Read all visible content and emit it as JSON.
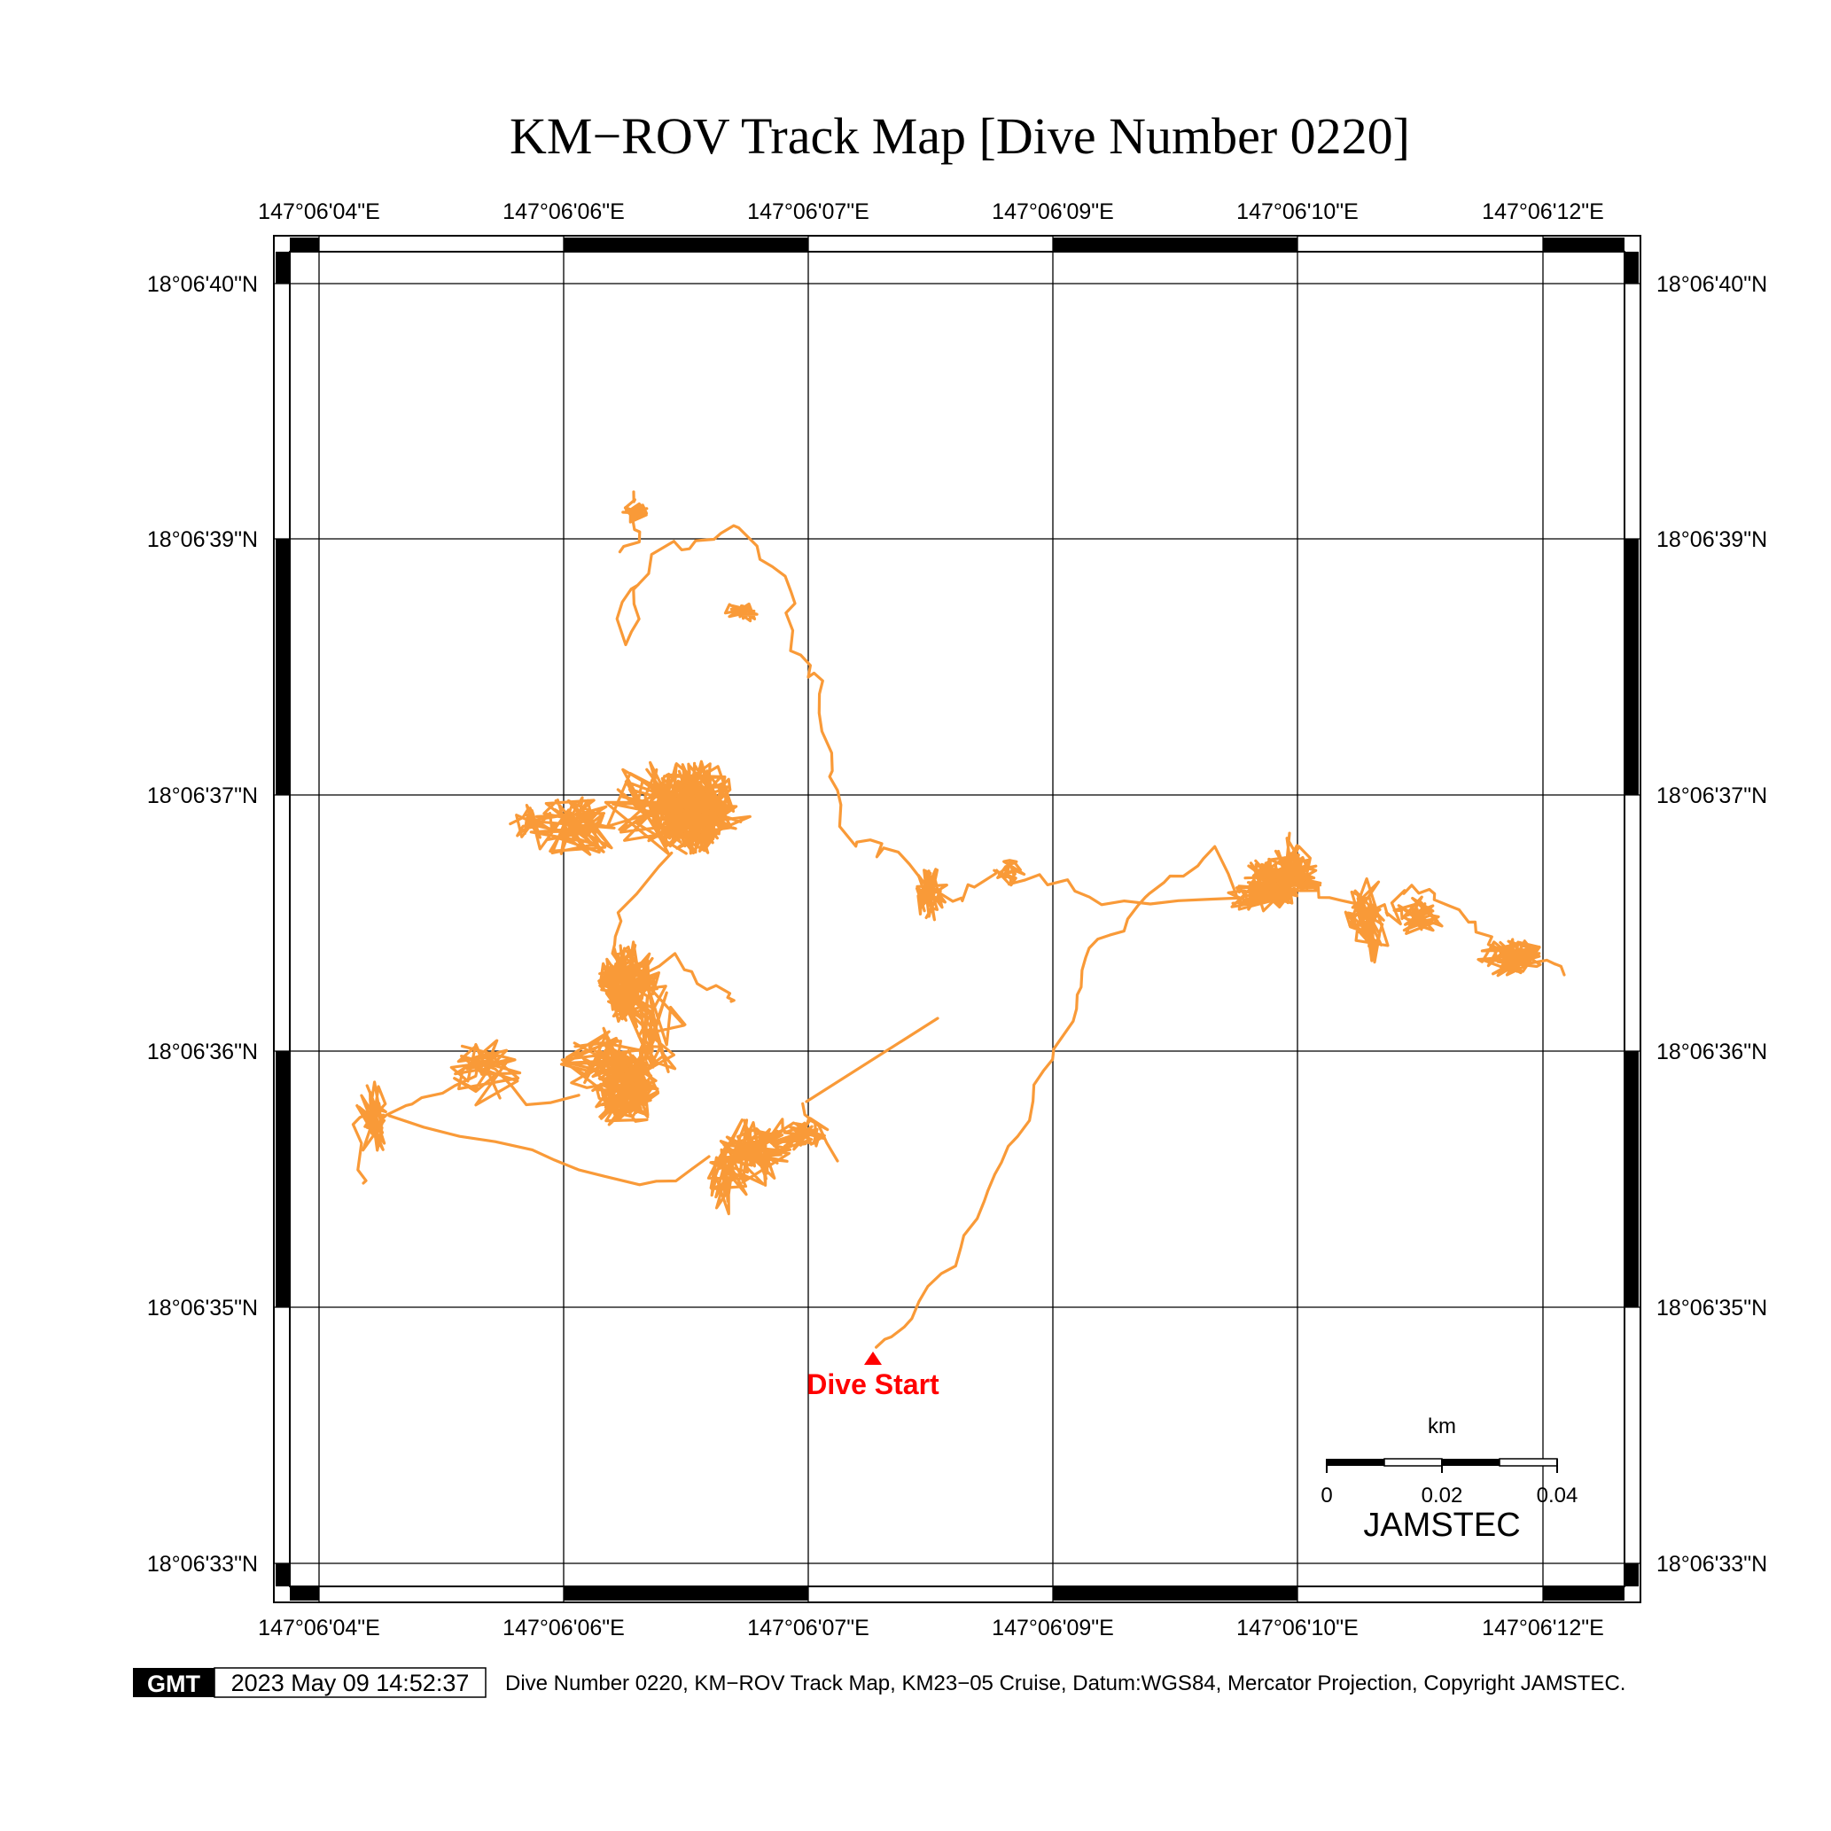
{
  "title": "KM−ROV Track Map [Dive Number 0220]",
  "axes": {
    "lon_labels": [
      "147°06'04\"E",
      "147°06'06\"E",
      "147°06'07\"E",
      "147°06'09\"E",
      "147°06'10\"E",
      "147°06'12\"E"
    ],
    "lat_labels": [
      "18°06'40\"N",
      "18°06'39\"N",
      "18°06'37\"N",
      "18°06'36\"N",
      "18°06'35\"N",
      "18°06'33\"N"
    ]
  },
  "scale_bar": {
    "unit": "km",
    "ticks": [
      "0",
      "0.02",
      "0.04"
    ]
  },
  "logo": "JAMSTEC",
  "start_marker": {
    "label": "Dive Start",
    "color": "#ff0000"
  },
  "track": {
    "color": "#f99a38"
  },
  "footer": {
    "gmt_badge": "GMT",
    "timestamp": "2023 May 09 14:52:37",
    "caption": "Dive Number 0220, KM−ROV Track Map, KM23−05 Cruise, Datum:WGS84, Mercator Projection, Copyright JAMSTEC."
  }
}
